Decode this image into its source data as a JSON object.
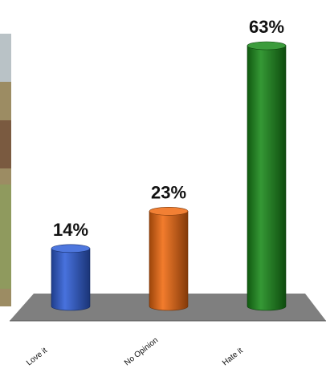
{
  "chart_data": {
    "type": "bar",
    "style": "3d-cylinder",
    "categories": [
      "Love it",
      "No Opinion",
      "Hate it"
    ],
    "values": [
      14,
      23,
      63
    ],
    "value_labels": [
      "14%",
      "23%",
      "63%"
    ],
    "unit": "%",
    "ylim": [
      0,
      63
    ],
    "grid": false,
    "legend": "none",
    "colors": {
      "Love it": "#2f5fd8",
      "No Opinion": "#f06a10",
      "Hate it": "#1a8a1a",
      "floor": "#7f7f7f",
      "photo_edge": "#8a7a55"
    }
  }
}
